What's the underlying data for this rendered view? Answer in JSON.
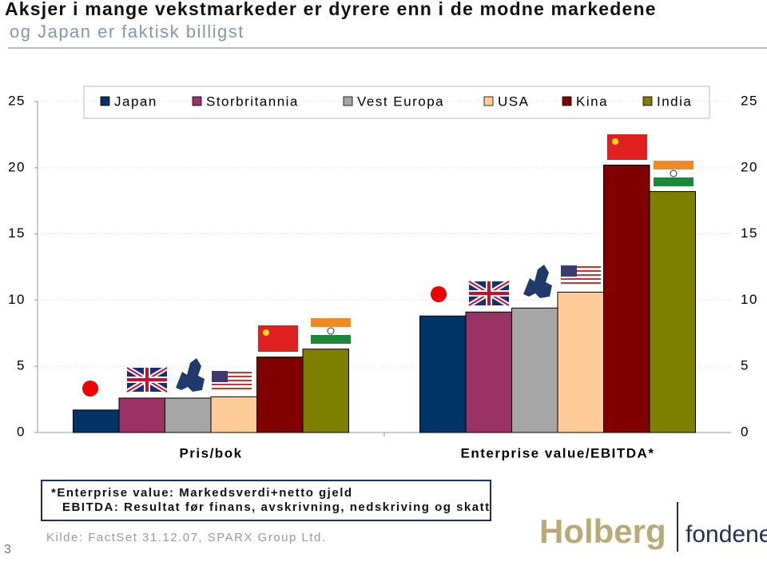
{
  "chart_data": {
    "type": "bar",
    "title": "Aksjer i mange vekstmarkeder er dyrere enn i de modne markedene",
    "subtitle": "og Japan er faktisk billigst",
    "categories": [
      "Pris/bok",
      "Enterprise value/EBITDA*"
    ],
    "series": [
      {
        "name": "Japan",
        "color": "#003366",
        "values": [
          1.7,
          8.8
        ]
      },
      {
        "name": "Storbritannia",
        "color": "#993366",
        "values": [
          2.6,
          9.1
        ]
      },
      {
        "name": "Vest Europa",
        "color": "#a6a6a6",
        "values": [
          2.6,
          9.4
        ]
      },
      {
        "name": "USA",
        "color": "#ffcc99",
        "values": [
          2.7,
          10.6
        ]
      },
      {
        "name": "Kina",
        "color": "#800000",
        "values": [
          5.7,
          20.2
        ]
      },
      {
        "name": "India",
        "color": "#808000",
        "values": [
          6.3,
          18.2
        ]
      }
    ],
    "ylim": [
      0,
      25
    ],
    "yticks": [
      0,
      5,
      10,
      15,
      20,
      25
    ],
    "y2lim": [
      0,
      25
    ],
    "y2ticks": [
      0,
      5,
      10,
      15,
      20,
      25
    ],
    "grid": true,
    "legend": "top"
  },
  "footnote": [
    "*Enterprise value: Markedsverdi+netto gjeld",
    "EBITDA: Resultat før finans, avskrivning, nedskriving og skatt"
  ],
  "source": "Kilde: FactSet 31.12.07, SPARX Group Ltd.",
  "logo": [
    "Holberg",
    "fondene"
  ],
  "page_number": "3"
}
